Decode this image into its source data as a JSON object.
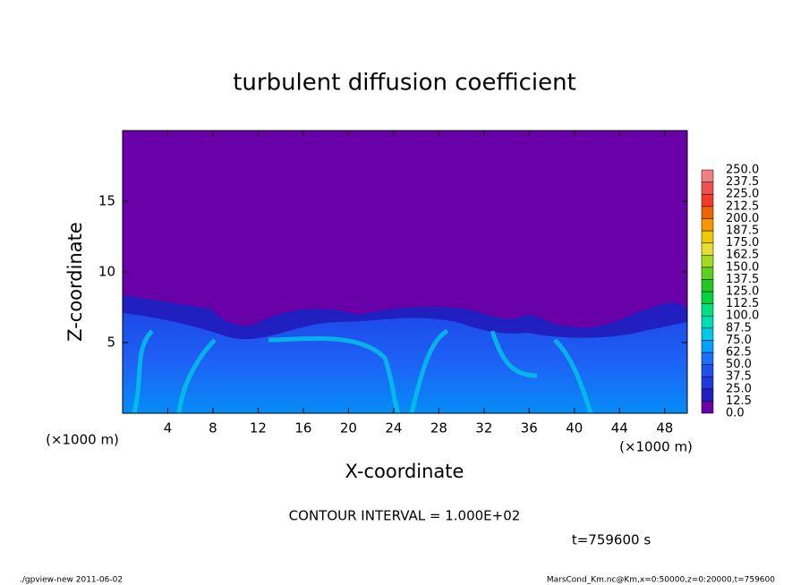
{
  "chart_data": {
    "type": "contour",
    "title": "turbulent diffusion coefficient",
    "xlabel": "X-coordinate",
    "ylabel": "Z-coordinate",
    "x_unit_label": "(×1000 m)",
    "y_unit_label": "(×1000 m)",
    "xlim": [
      0,
      50
    ],
    "xticks": [
      4,
      8,
      12,
      16,
      20,
      24,
      28,
      32,
      36,
      40,
      44,
      48
    ],
    "ylim": [
      0,
      20
    ],
    "yticks": [
      5,
      10,
      15
    ],
    "levels": [
      {
        "value": 0,
        "label": "0.0"
      },
      12.5,
      {
        "value": 25,
        "label": "25.0"
      },
      37.5,
      {
        "value": 50,
        "label": "50.0"
      },
      62.5,
      {
        "value": 75,
        "label": "75.0"
      },
      87.5,
      {
        "value": 100,
        "label": "100.0"
      },
      112.5,
      {
        "value": 125,
        "label": "125.0"
      },
      137.5,
      {
        "value": 150,
        "label": "150.0"
      },
      162.5,
      {
        "value": 175,
        "label": "175.0"
      },
      187.5,
      {
        "value": 200,
        "label": "200.0"
      },
      212.5,
      {
        "value": 225,
        "label": "225.0"
      },
      237.5,
      {
        "value": 250,
        "label": "250.0"
      }
    ],
    "colors": [
      "#6a00a8",
      "#2020c0",
      "#1e3cdc",
      "#1e50f0",
      "#1e6eff",
      "#00a0ff",
      "#00c8e6",
      "#00dcb4",
      "#00e080",
      "#00d240",
      "#20c820",
      "#60d020",
      "#a0dc20",
      "#e6dc32",
      "#f0c800",
      "#fa9600",
      "#f06400",
      "#f03c28",
      "#f05050",
      "#f08080"
    ],
    "annotation": "CONTOUR INTERVAL = 1.000E+02",
    "time_label": "t=759600 s",
    "footer_left": "./gpview-new  2011-06-02",
    "footer_right": "MarsCond_Km.nc@Km,x=0:50000,z=0:20000,t=759600"
  }
}
